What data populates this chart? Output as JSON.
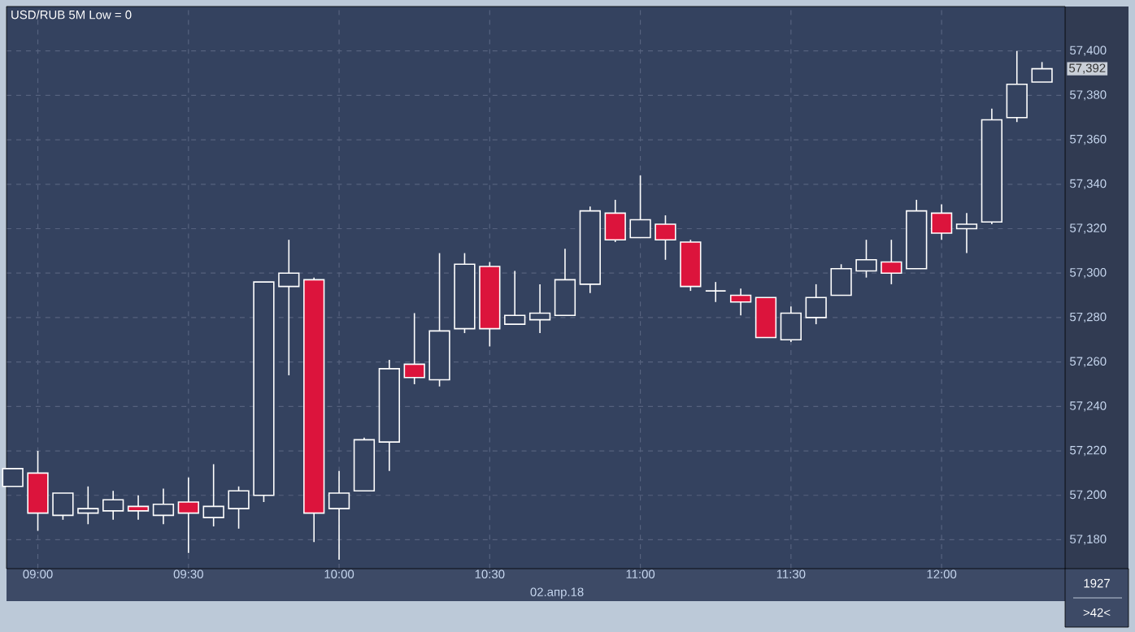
{
  "chart_data": {
    "type": "candlestick",
    "title": "USD/RUB 5M Low = 0",
    "xlabel": "02.апр.18",
    "x": [
      8.9167,
      9,
      9.0833,
      9.1667,
      9.25,
      9.3333,
      9.4167,
      9.5,
      9.5833,
      9.6667,
      9.75,
      9.8333,
      9.9167,
      10,
      10.0833,
      10.1667,
      10.25,
      10.3333,
      10.4167,
      10.5,
      10.5833,
      10.6667,
      10.75,
      10.8333,
      10.9167,
      11,
      11.0833,
      11.1667,
      11.25,
      11.3333,
      11.4167,
      11.5,
      11.5833,
      11.6667,
      11.75,
      11.8333,
      11.9167,
      12,
      12.0833,
      12.1667,
      12.25,
      12.3333
    ],
    "ohlc": [
      [
        57204,
        57212,
        57204,
        57212
      ],
      [
        57210,
        57220,
        57184,
        57192
      ],
      [
        57191,
        57201,
        57189,
        57201
      ],
      [
        57192,
        57204,
        57187,
        57194
      ],
      [
        57193,
        57202,
        57189,
        57198
      ],
      [
        57195,
        57200,
        57189,
        57193
      ],
      [
        57191,
        57203,
        57187,
        57196
      ],
      [
        57197,
        57208,
        57174,
        57192
      ],
      [
        57190,
        57214,
        57186,
        57195
      ],
      [
        57194,
        57204,
        57185,
        57202
      ],
      [
        57200,
        57296,
        57197,
        57296
      ],
      [
        57294,
        57315,
        57254,
        57300
      ],
      [
        57297,
        57298,
        57179,
        57192
      ],
      [
        57194,
        57211,
        57171,
        57201
      ],
      [
        57202,
        57226,
        57202,
        57225
      ],
      [
        57224,
        57261,
        57211,
        57257
      ],
      [
        57259,
        57282,
        57250,
        57253
      ],
      [
        57252,
        57309,
        57249,
        57274
      ],
      [
        57275,
        57309,
        57273,
        57304
      ],
      [
        57303,
        57305,
        57267,
        57275
      ],
      [
        57277,
        57301,
        57277,
        57281
      ],
      [
        57279,
        57295,
        57273,
        57282
      ],
      [
        57281,
        57311,
        57281,
        57297
      ],
      [
        57295,
        57330,
        57291,
        57328
      ],
      [
        57327,
        57333,
        57314,
        57315
      ],
      [
        57316,
        57344,
        57316,
        57324
      ],
      [
        57322,
        57326,
        57306,
        57315
      ],
      [
        57314,
        57315,
        57292,
        57294
      ],
      [
        57292,
        57296,
        57287,
        57292
      ],
      [
        57290,
        57293,
        57281,
        57287
      ],
      [
        57289,
        57289,
        57271,
        57271
      ],
      [
        57270,
        57285,
        57269,
        57282
      ],
      [
        57280,
        57295,
        57277,
        57289
      ],
      [
        57290,
        57304,
        57290,
        57302
      ],
      [
        57301,
        57315,
        57298,
        57306
      ],
      [
        57305,
        57315,
        57295,
        57300
      ],
      [
        57302,
        57333,
        57302,
        57328
      ],
      [
        57327,
        57331,
        57315,
        57318
      ],
      [
        57320,
        57327,
        57309,
        57322
      ],
      [
        57323,
        57374,
        57322,
        57369
      ],
      [
        57370,
        57400,
        57368,
        57385
      ],
      [
        57386,
        57395,
        57386,
        57392
      ]
    ],
    "xlim": [
      8.896,
      12.41
    ],
    "ylim": [
      57167,
      57420
    ],
    "xticks": [
      {
        "value": 9,
        "label": "09:00"
      },
      {
        "value": 9.5,
        "label": "09:30"
      },
      {
        "value": 10,
        "label": "10:00"
      },
      {
        "value": 10.5,
        "label": "10:30"
      },
      {
        "value": 11,
        "label": "11:00"
      },
      {
        "value": 11.5,
        "label": "11:30"
      },
      {
        "value": 12,
        "label": "12:00"
      }
    ],
    "yticks": [
      {
        "value": 57180,
        "label": "57,180"
      },
      {
        "value": 57200,
        "label": "57,200"
      },
      {
        "value": 57220,
        "label": "57,220"
      },
      {
        "value": 57240,
        "label": "57,240"
      },
      {
        "value": 57260,
        "label": "57,260"
      },
      {
        "value": 57280,
        "label": "57,280"
      },
      {
        "value": 57300,
        "label": "57,300"
      },
      {
        "value": 57320,
        "label": "57,320"
      },
      {
        "value": 57340,
        "label": "57,340"
      },
      {
        "value": 57360,
        "label": "57,360"
      },
      {
        "value": 57380,
        "label": "57,380"
      },
      {
        "value": 57400,
        "label": "57,400"
      }
    ],
    "grid": true,
    "annotations": [
      {
        "text": "57,392",
        "y": 57392
      },
      "1927",
      ">42<"
    ]
  }
}
